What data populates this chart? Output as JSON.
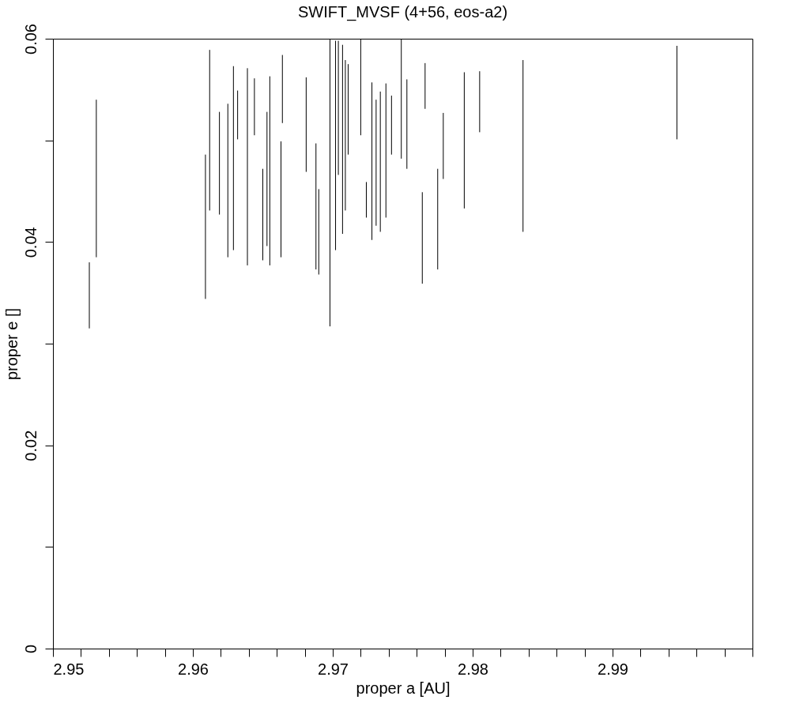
{
  "chart_data": {
    "type": "line",
    "title": "SWIFT_MVSF (4+56, eos-a2)",
    "xlabel": "proper a [AU]",
    "ylabel": "proper e []",
    "xlim": [
      2.95,
      3.0
    ],
    "ylim": [
      0,
      0.06
    ],
    "xticks": [
      2.95,
      {
        "value": 2.952,
        "label": null
      },
      {
        "value": 2.954,
        "label": null
      },
      {
        "value": 2.956,
        "label": null
      },
      {
        "value": 2.958,
        "label": null
      },
      2.96,
      {
        "value": 2.962,
        "label": null
      },
      {
        "value": 2.964,
        "label": null
      },
      {
        "value": 2.966,
        "label": null
      },
      {
        "value": 2.968,
        "label": null
      },
      2.97,
      {
        "value": 2.972,
        "label": null
      },
      {
        "value": 2.974,
        "label": null
      },
      {
        "value": 2.976,
        "label": null
      },
      {
        "value": 2.978,
        "label": null
      },
      2.98,
      {
        "value": 2.982,
        "label": null
      },
      {
        "value": 2.984,
        "label": null
      },
      {
        "value": 2.986,
        "label": null
      },
      {
        "value": 2.988,
        "label": null
      },
      2.99,
      {
        "value": 2.992,
        "label": null
      },
      {
        "value": 2.994,
        "label": null
      },
      {
        "value": 2.996,
        "label": null
      },
      {
        "value": 2.998,
        "label": null
      },
      {
        "value": 3.0,
        "label": null
      }
    ],
    "yticks": [
      0,
      {
        "value": 0.01,
        "label": null
      },
      0.02,
      {
        "value": 0.03,
        "label": null
      },
      0.04,
      {
        "value": 0.05,
        "label": null
      },
      0.06
    ],
    "grid": false,
    "legend": false,
    "marker": "none",
    "line_style": "solid",
    "series": [
      {
        "color": "#000000",
        "x": [
          2.9526,
          2.9526
        ],
        "values": [
          0.0315,
          0.038
        ]
      },
      {
        "color": "#000000",
        "x": [
          2.9531,
          2.9531
        ],
        "values": [
          0.0385,
          0.054
        ]
      },
      {
        "color": "#000000",
        "x": [
          2.9609,
          2.9609
        ],
        "values": [
          0.0344,
          0.0486
        ]
      },
      {
        "color": "#000000",
        "x": [
          2.9612,
          2.9612
        ],
        "values": [
          0.0431,
          0.0589
        ]
      },
      {
        "color": "#000000",
        "x": [
          2.9619,
          2.9619
        ],
        "values": [
          0.0427,
          0.0528
        ]
      },
      {
        "color": "#000000",
        "x": [
          2.9625,
          2.9625
        ],
        "values": [
          0.0385,
          0.0536
        ]
      },
      {
        "color": "#000000",
        "x": [
          2.9629,
          2.9629
        ],
        "values": [
          0.0392,
          0.0573
        ]
      },
      {
        "color": "#000000",
        "x": [
          2.9632,
          2.9632
        ],
        "values": [
          0.0501,
          0.0549
        ]
      },
      {
        "color": "#000000",
        "x": [
          2.9639,
          2.9639
        ],
        "values": [
          0.0377,
          0.0571
        ]
      },
      {
        "color": "#000000",
        "x": [
          2.9644,
          2.9644
        ],
        "values": [
          0.0505,
          0.0561
        ]
      },
      {
        "color": "#000000",
        "x": [
          2.965,
          2.965
        ],
        "values": [
          0.0382,
          0.0472
        ]
      },
      {
        "color": "#000000",
        "x": [
          2.9653,
          2.9653
        ],
        "values": [
          0.0396,
          0.0528
        ]
      },
      {
        "color": "#000000",
        "x": [
          2.9655,
          2.9655
        ],
        "values": [
          0.0377,
          0.0563
        ]
      },
      {
        "color": "#000000",
        "x": [
          2.9663,
          2.9663
        ],
        "values": [
          0.0385,
          0.0499
        ]
      },
      {
        "color": "#000000",
        "x": [
          2.9664,
          2.9664
        ],
        "values": [
          0.0517,
          0.0584
        ]
      },
      {
        "color": "#000000",
        "x": [
          2.9681,
          2.9681
        ],
        "values": [
          0.0469,
          0.0562
        ]
      },
      {
        "color": "#000000",
        "x": [
          2.9688,
          2.9688
        ],
        "values": [
          0.0373,
          0.0497
        ]
      },
      {
        "color": "#000000",
        "x": [
          2.969,
          2.969
        ],
        "values": [
          0.0368,
          0.0452
        ]
      },
      {
        "color": "#000000",
        "x": [
          2.9698,
          2.9698
        ],
        "values": [
          0.0317,
          0.06
        ]
      },
      {
        "color": "#000000",
        "x": [
          2.9702,
          2.9702
        ],
        "values": [
          0.0392,
          0.0598
        ]
      },
      {
        "color": "#000000",
        "x": [
          2.9704,
          2.9704
        ],
        "values": [
          0.0466,
          0.0598
        ]
      },
      {
        "color": "#000000",
        "x": [
          2.9707,
          2.9707
        ],
        "values": [
          0.0408,
          0.0594
        ]
      },
      {
        "color": "#000000",
        "x": [
          2.9709,
          2.9709
        ],
        "values": [
          0.0431,
          0.0579
        ]
      },
      {
        "color": "#000000",
        "x": [
          2.9711,
          2.9711
        ],
        "values": [
          0.0486,
          0.0575
        ]
      },
      {
        "color": "#000000",
        "x": [
          2.972,
          2.972
        ],
        "values": [
          0.0505,
          0.06
        ]
      },
      {
        "color": "#000000",
        "x": [
          2.9724,
          2.9724
        ],
        "values": [
          0.0424,
          0.0459
        ]
      },
      {
        "color": "#000000",
        "x": [
          2.9728,
          2.9728
        ],
        "values": [
          0.0402,
          0.0557
        ]
      },
      {
        "color": "#000000",
        "x": [
          2.9731,
          2.9731
        ],
        "values": [
          0.0416,
          0.054
        ]
      },
      {
        "color": "#000000",
        "x": [
          2.9734,
          2.9734
        ],
        "values": [
          0.041,
          0.0548
        ]
      },
      {
        "color": "#000000",
        "x": [
          2.9738,
          2.9738
        ],
        "values": [
          0.0424,
          0.0556
        ]
      },
      {
        "color": "#000000",
        "x": [
          2.9742,
          2.9742
        ],
        "values": [
          0.0486,
          0.0544
        ]
      },
      {
        "color": "#000000",
        "x": [
          2.9749,
          2.9749
        ],
        "values": [
          0.0482,
          0.06
        ]
      },
      {
        "color": "#000000",
        "x": [
          2.9753,
          2.9753
        ],
        "values": [
          0.0472,
          0.056
        ]
      },
      {
        "color": "#000000",
        "x": [
          2.9764,
          2.9764
        ],
        "values": [
          0.0359,
          0.0449
        ]
      },
      {
        "color": "#000000",
        "x": [
          2.9766,
          2.9766
        ],
        "values": [
          0.0531,
          0.0576
        ]
      },
      {
        "color": "#000000",
        "x": [
          2.9775,
          2.9775
        ],
        "values": [
          0.0373,
          0.0472
        ]
      },
      {
        "color": "#000000",
        "x": [
          2.9779,
          2.9779
        ],
        "values": [
          0.0462,
          0.0527
        ]
      },
      {
        "color": "#000000",
        "x": [
          2.9794,
          2.9794
        ],
        "values": [
          0.0433,
          0.0567
        ]
      },
      {
        "color": "#000000",
        "x": [
          2.9805,
          2.9805
        ],
        "values": [
          0.0508,
          0.0568
        ]
      },
      {
        "color": "#000000",
        "x": [
          2.9836,
          2.9836
        ],
        "values": [
          0.041,
          0.0579
        ]
      },
      {
        "color": "#000000",
        "x": [
          2.9946,
          2.9946
        ],
        "values": [
          0.0501,
          0.0593
        ]
      }
    ]
  }
}
